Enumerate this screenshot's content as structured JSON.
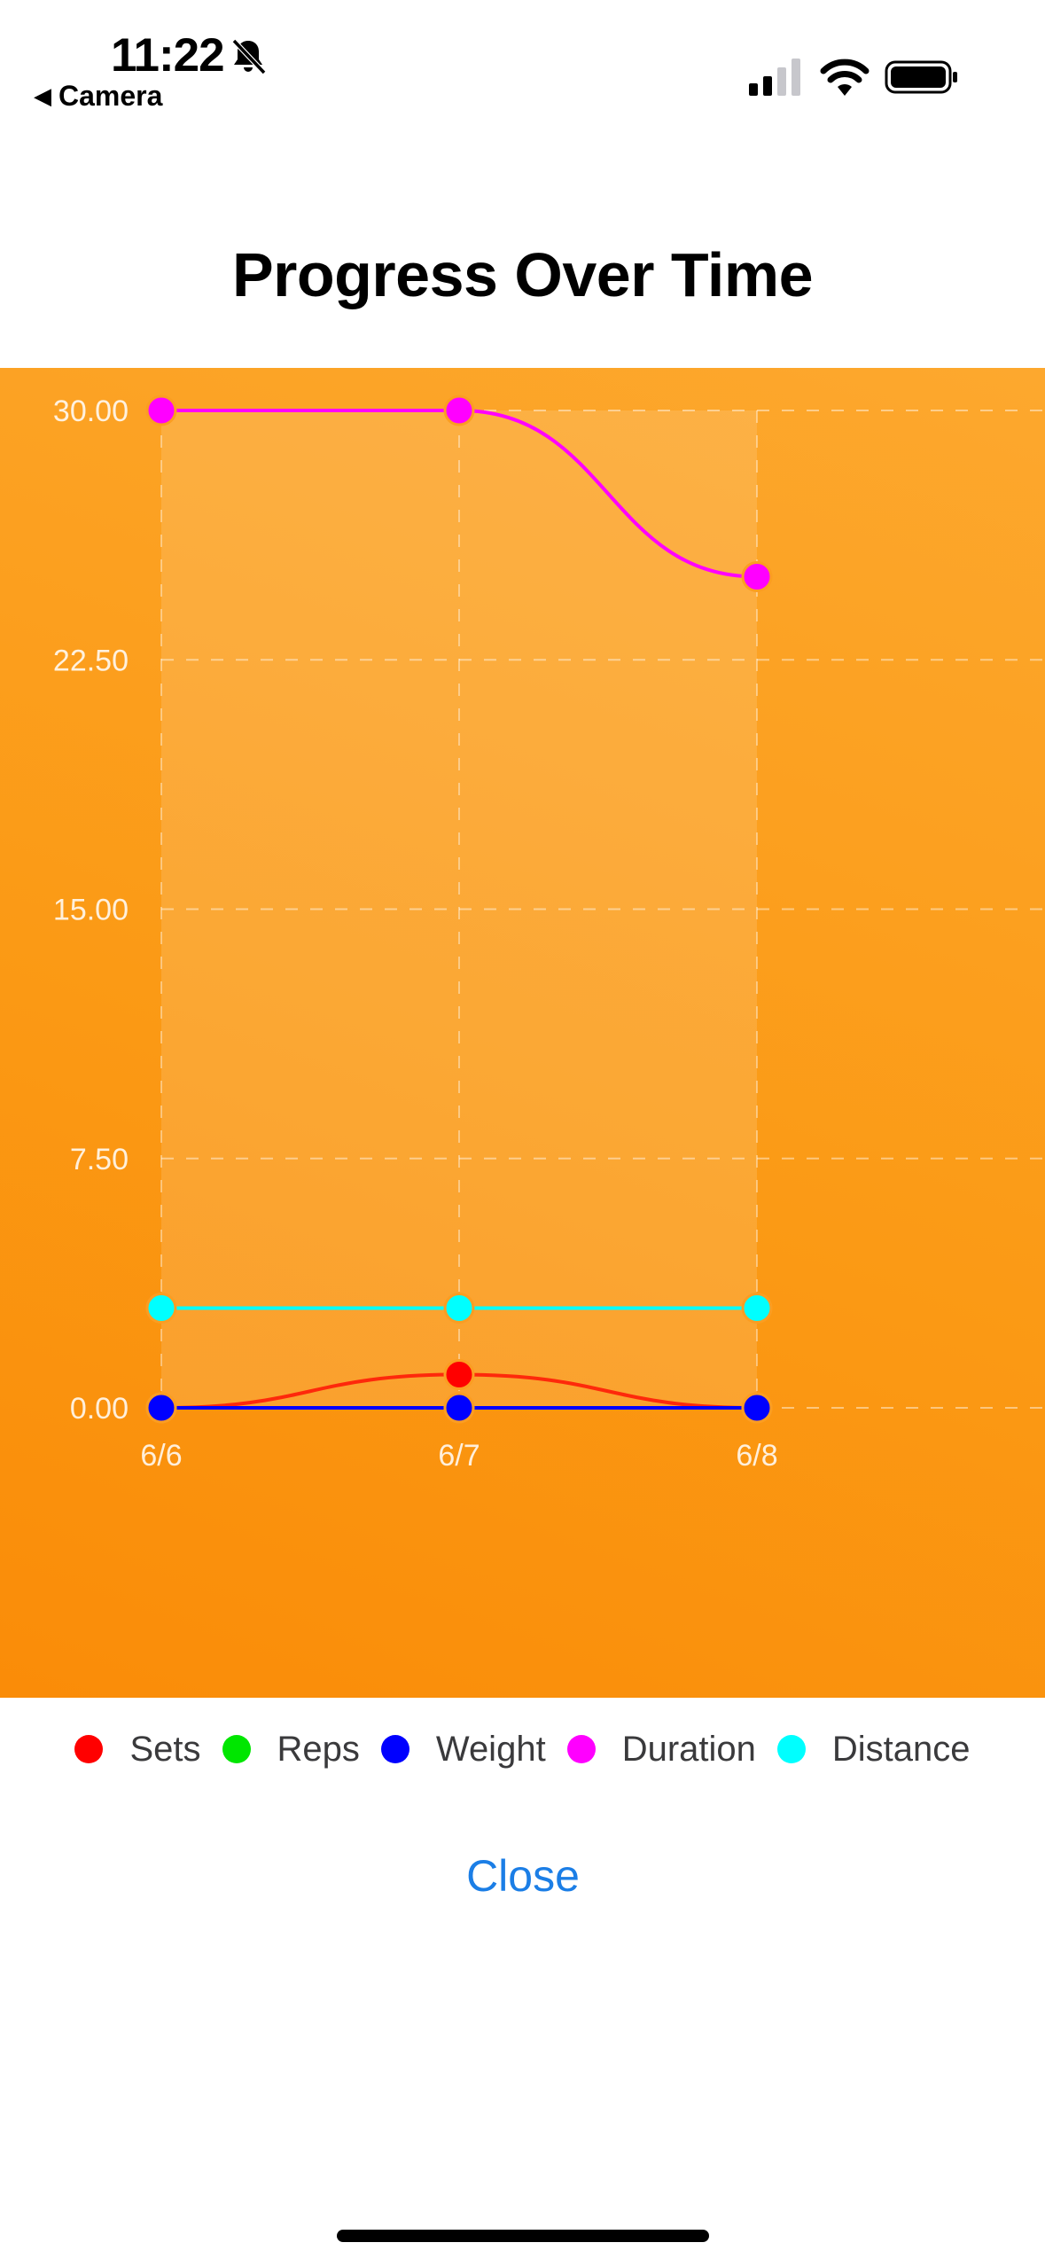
{
  "status_bar": {
    "time": "11:22",
    "back_label": "Camera",
    "back_icon": "back-triangle-icon",
    "mute_icon": "bell-slash-icon"
  },
  "page": {
    "title": "Progress Over Time",
    "close_label": "Close"
  },
  "colors": {
    "panel_gradient_start": "#fda82e",
    "panel_gradient_end": "#fa8c08",
    "link_blue": "#1b7ee6"
  },
  "chart_data": {
    "type": "line",
    "x": [
      "6/6",
      "6/7",
      "6/8"
    ],
    "y_ticks": [
      "30.00",
      "22.50",
      "15.00",
      "7.50",
      "0.00"
    ],
    "ylim": [
      0,
      30
    ],
    "grid": true,
    "legend_position": "bottom",
    "series": [
      {
        "name": "Sets",
        "color": "#ff0000",
        "values": [
          0,
          1,
          0
        ]
      },
      {
        "name": "Reps",
        "color": "#00e600",
        "values": [
          0,
          0,
          0
        ]
      },
      {
        "name": "Weight",
        "color": "#0000ff",
        "values": [
          0,
          0,
          0
        ]
      },
      {
        "name": "Duration",
        "color": "#ff00ff",
        "values": [
          30,
          30,
          25
        ]
      },
      {
        "name": "Distance",
        "color": "#00ffff",
        "values": [
          3,
          3,
          3
        ]
      }
    ]
  }
}
